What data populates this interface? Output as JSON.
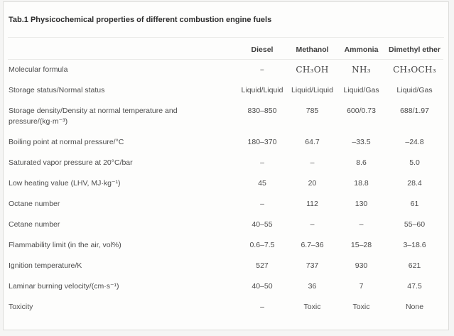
{
  "title": "Tab.1 Physicochemical properties of different combustion engine fuels",
  "colors": {
    "page_background": "#f5f5f4",
    "card_background": "#fdfdfc",
    "card_border": "#dcdcda",
    "rule": "#e8e8e6",
    "title_text": "#2d2d2d",
    "header_text": "#3e3e3e",
    "body_text": "#4b4b4b"
  },
  "table": {
    "headers": [
      "",
      "Diesel",
      "Methanol",
      "Ammonia",
      "Dimethyl ether"
    ],
    "rows": [
      {
        "label": "Molecular formula",
        "serif": true,
        "values": [
          "–",
          "CH₃OH",
          "NH₃",
          "CH₃OCH₃"
        ]
      },
      {
        "label": "Storage status/Normal status",
        "values": [
          "Liquid/Liquid",
          "Liquid/Liquid",
          "Liquid/Gas",
          "Liquid/Gas"
        ]
      },
      {
        "label": "Storage density/Density at normal temperature and pressure/(kg·m⁻³)",
        "values": [
          "830–850",
          "785",
          "600/0.73",
          "688/1.97"
        ]
      },
      {
        "label": "Boiling point at normal pressure/°C",
        "values": [
          "180–370",
          "64.7",
          "–33.5",
          "–24.8"
        ]
      },
      {
        "label": "Saturated vapor pressure at 20°C/bar",
        "values": [
          "–",
          "–",
          "8.6",
          "5.0"
        ]
      },
      {
        "label": "Low heating value (LHV, MJ·kg⁻¹)",
        "values": [
          "45",
          "20",
          "18.8",
          "28.4"
        ]
      },
      {
        "label": "Octane number",
        "values": [
          "–",
          "112",
          "130",
          "61"
        ]
      },
      {
        "label": "Cetane number",
        "values": [
          "40–55",
          "–",
          "–",
          "55–60"
        ]
      },
      {
        "label": "Flammability limit (in the air, vol%)",
        "values": [
          "0.6–7.5",
          "6.7–36",
          "15–28",
          "3–18.6"
        ]
      },
      {
        "label": "Ignition temperature/K",
        "values": [
          "527",
          "737",
          "930",
          "621"
        ]
      },
      {
        "label": "Laminar burning velocity/(cm·s⁻¹)",
        "values": [
          "40–50",
          "36",
          "7",
          "47.5"
        ]
      },
      {
        "label": "Toxicity",
        "values": [
          "–",
          "Toxic",
          "Toxic",
          "None"
        ]
      }
    ]
  }
}
